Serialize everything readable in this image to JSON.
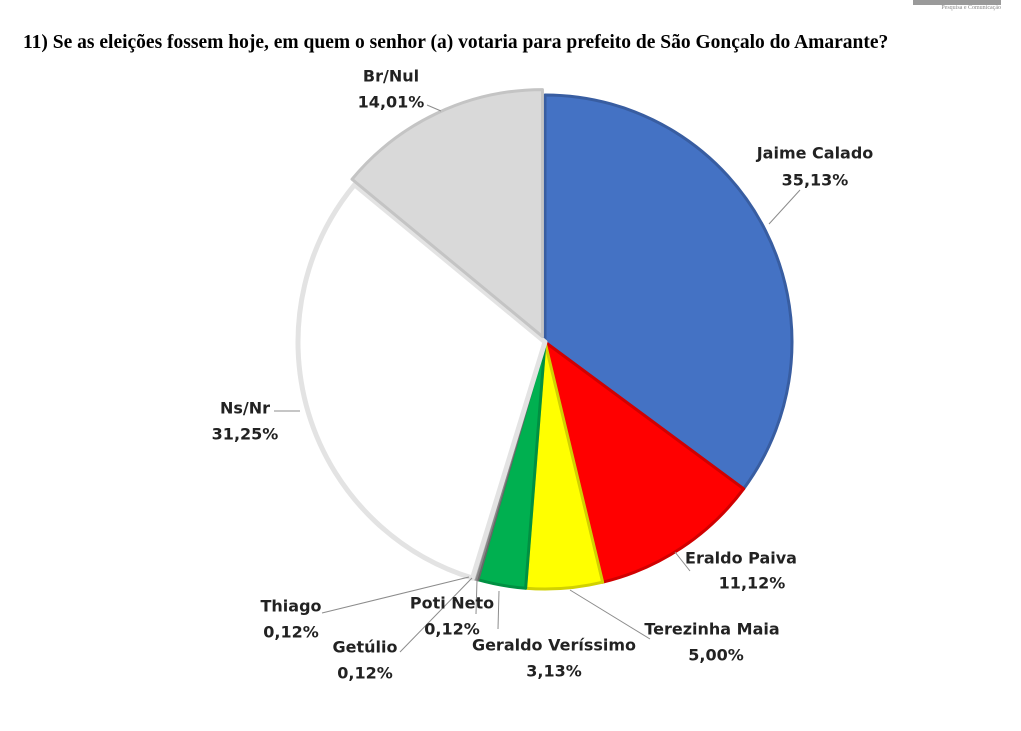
{
  "header": {
    "logo_tagline": "Pesquisa e Comunicação",
    "question": "11) Se as eleições fossem hoje, em quem o senhor (a) votaria para prefeito de São Gonçalo do Amarante?"
  },
  "chart_data": {
    "type": "pie",
    "title": "",
    "start_angle_deg": 0,
    "direction": "clockwise",
    "slices": [
      {
        "label": "Jaime Calado",
        "value": 35.13,
        "value_label": "35,13%",
        "color": "#4472C4"
      },
      {
        "label": "Eraldo Paiva",
        "value": 11.12,
        "value_label": "11,12%",
        "color": "#FF0000"
      },
      {
        "label": "Terezinha Maia",
        "value": 5.0,
        "value_label": "5,00%",
        "color": "#FFFF00"
      },
      {
        "label": "Geraldo Veríssimo",
        "value": 3.13,
        "value_label": "3,13%",
        "color": "#00B050"
      },
      {
        "label": "Poti Neto",
        "value": 0.12,
        "value_label": "0,12%",
        "color": "#7F7F7F"
      },
      {
        "label": "Getúlio",
        "value": 0.12,
        "value_label": "0,12%",
        "color": "#A5A5A5"
      },
      {
        "label": "Thiago",
        "value": 0.12,
        "value_label": "0,12%",
        "color": "#C9C9C9"
      },
      {
        "label": "Ns/Nr",
        "value": 31.25,
        "value_label": "31,25%",
        "color": "#FFFFFF"
      },
      {
        "label": "Br/Nul",
        "value": 14.01,
        "value_label": "14,01%",
        "color": "#D9D9D9"
      }
    ]
  }
}
